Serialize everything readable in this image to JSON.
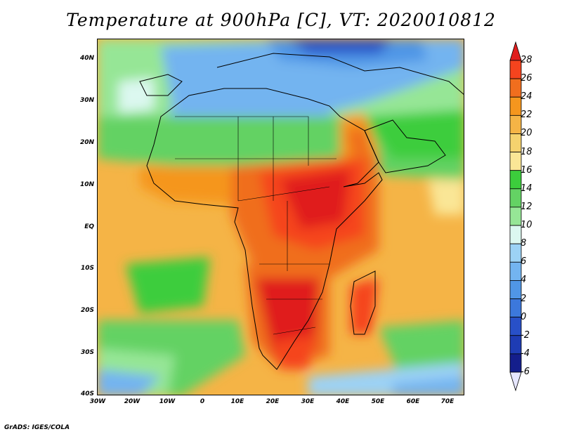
{
  "title": "Temperature at 900hPa [C], VT: 2020010812",
  "credit": "GrADS: IGES/COLA",
  "lat_ticks": [
    "40N",
    "30N",
    "20N",
    "10N",
    "EQ",
    "10S",
    "20S",
    "30S",
    "40S"
  ],
  "lon_ticks": [
    "30W",
    "20W",
    "10W",
    "0",
    "10E",
    "20E",
    "30E",
    "40E",
    "50E",
    "60E",
    "70E"
  ],
  "colorbar": {
    "labels": [
      "28",
      "26",
      "24",
      "22",
      "20",
      "18",
      "16",
      "14",
      "12",
      "10",
      "8",
      "6",
      "4",
      "2",
      "0",
      "-2",
      "-4",
      "-6"
    ],
    "colors": [
      "#e01e1e",
      "#f5441e",
      "#f06e1e",
      "#f5961e",
      "#f5b446",
      "#f5d26e",
      "#fae696",
      "#3ccd3c",
      "#64d264",
      "#96e696",
      "#dcf8f0",
      "#9cd2f5",
      "#73b4f0",
      "#5096e6",
      "#3c78dc",
      "#2850c8",
      "#1e3cb4",
      "#141e8c",
      "#e6e6ff"
    ]
  },
  "map": {
    "extent": {
      "lon": [
        -30,
        75
      ],
      "lat": [
        -40,
        45
      ]
    }
  }
}
